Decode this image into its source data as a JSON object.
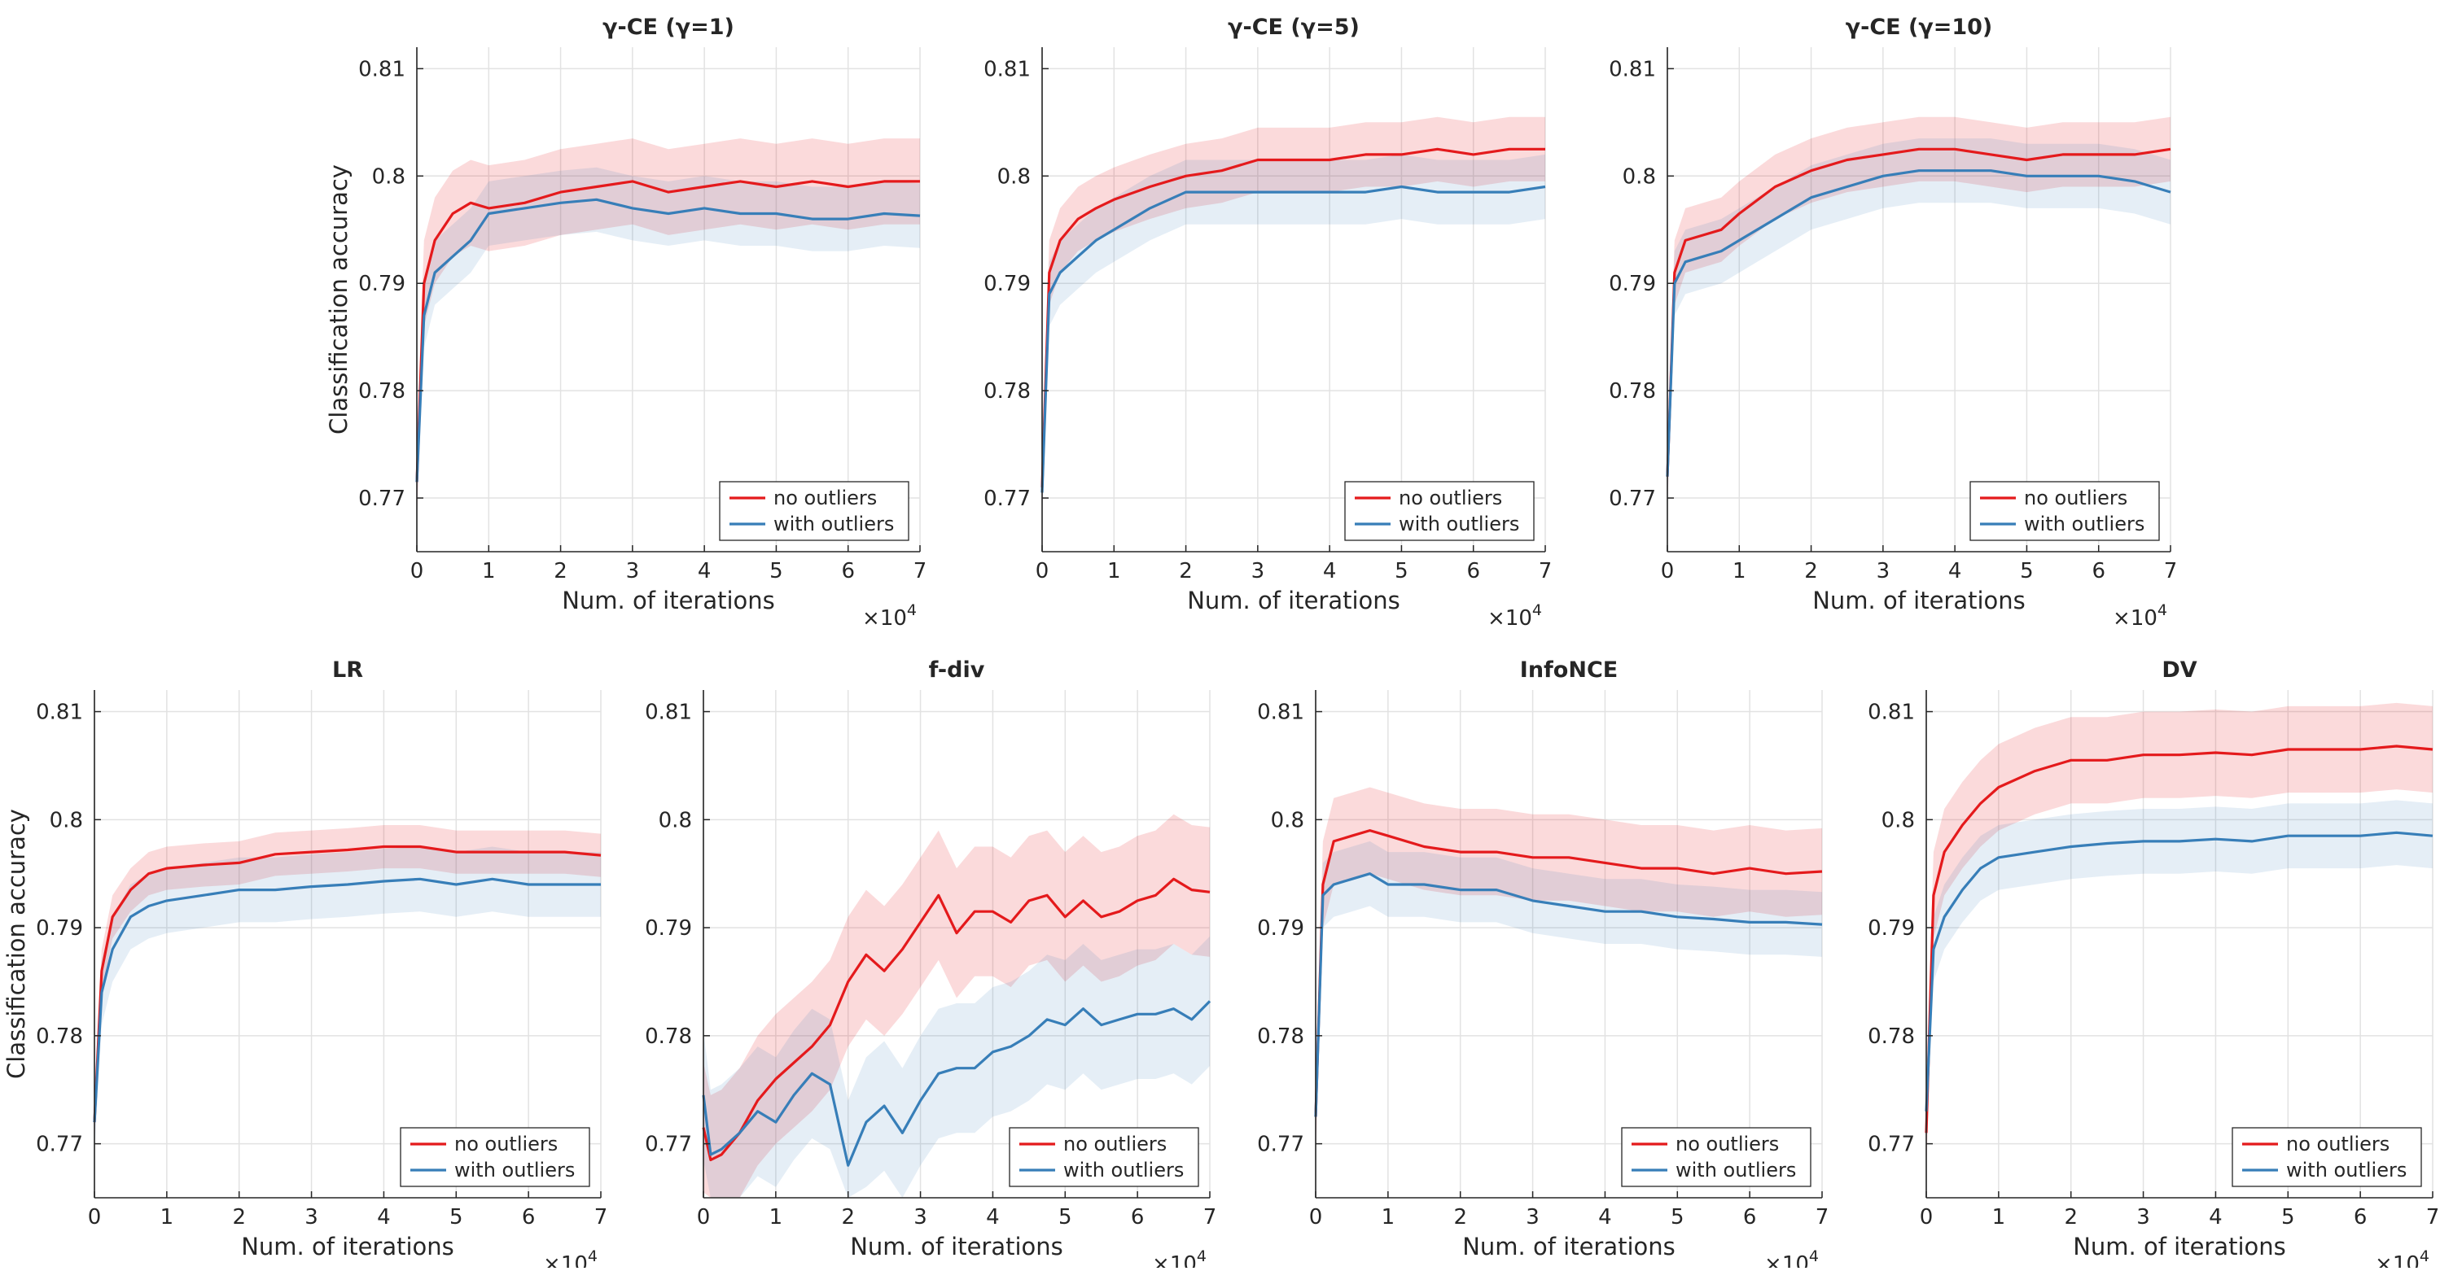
{
  "colors": {
    "no_outliers": "#e41a1c",
    "with_outliers": "#377eb8"
  },
  "chart_data": [
    {
      "type": "line",
      "title": "γ-CE (γ=1)",
      "xlabel": "Num. of iterations",
      "ylabel": "Classification accuracy",
      "x_multiplier": "×10^4",
      "xlim": [
        0,
        7
      ],
      "ylim": [
        0.765,
        0.812
      ],
      "xticks": [
        "0",
        "1",
        "2",
        "3",
        "4",
        "5",
        "6",
        "7"
      ],
      "yticks": [
        "0.77",
        "0.78",
        "0.79",
        "0.8",
        "0.81"
      ],
      "legend": [
        "no outliers",
        "with outliers"
      ],
      "legend_location": "bottom-right",
      "grid": true,
      "series": [
        {
          "name": "no outliers",
          "x": [
            0,
            0.1,
            0.25,
            0.5,
            0.75,
            1,
            1.5,
            2,
            2.5,
            3,
            3.5,
            4,
            4.5,
            5,
            5.5,
            6,
            6.5,
            7
          ],
          "y": [
            0.7715,
            0.79,
            0.794,
            0.7965,
            0.7975,
            0.797,
            0.7975,
            0.7985,
            0.799,
            0.7995,
            0.7985,
            0.799,
            0.7995,
            0.799,
            0.7995,
            0.799,
            0.7995,
            0.7995
          ],
          "band": 0.004
        },
        {
          "name": "with outliers",
          "x": [
            0,
            0.1,
            0.25,
            0.5,
            0.75,
            1,
            1.5,
            2,
            2.5,
            3,
            3.5,
            4,
            4.5,
            5,
            5.5,
            6,
            6.5,
            7
          ],
          "y": [
            0.7715,
            0.787,
            0.791,
            0.7925,
            0.794,
            0.7965,
            0.797,
            0.7975,
            0.7978,
            0.797,
            0.7965,
            0.797,
            0.7965,
            0.7965,
            0.796,
            0.796,
            0.7965,
            0.7963
          ],
          "band": 0.003
        }
      ]
    },
    {
      "type": "line",
      "title": "γ-CE (γ=5)",
      "xlabel": "Num. of iterations",
      "ylabel": "",
      "x_multiplier": "×10^4",
      "xlim": [
        0,
        7
      ],
      "ylim": [
        0.765,
        0.812
      ],
      "xticks": [
        "0",
        "1",
        "2",
        "3",
        "4",
        "5",
        "6",
        "7"
      ],
      "yticks": [
        "0.77",
        "0.78",
        "0.79",
        "0.8",
        "0.81"
      ],
      "legend": [
        "no outliers",
        "with outliers"
      ],
      "legend_location": "bottom-right",
      "grid": true,
      "series": [
        {
          "name": "no outliers",
          "x": [
            0,
            0.1,
            0.25,
            0.5,
            0.75,
            1,
            1.5,
            2,
            2.5,
            3,
            3.5,
            4,
            4.5,
            5,
            5.5,
            6,
            6.5,
            7
          ],
          "y": [
            0.771,
            0.791,
            0.794,
            0.796,
            0.797,
            0.7978,
            0.799,
            0.8,
            0.8005,
            0.8015,
            0.8015,
            0.8015,
            0.802,
            0.802,
            0.8025,
            0.802,
            0.8025,
            0.8025
          ],
          "band": 0.003
        },
        {
          "name": "with outliers",
          "x": [
            0,
            0.1,
            0.25,
            0.5,
            0.75,
            1,
            1.5,
            2,
            2.5,
            3,
            3.5,
            4,
            4.5,
            5,
            5.5,
            6,
            6.5,
            7
          ],
          "y": [
            0.7705,
            0.789,
            0.791,
            0.7925,
            0.794,
            0.795,
            0.797,
            0.7985,
            0.7985,
            0.7985,
            0.7985,
            0.7985,
            0.7985,
            0.799,
            0.7985,
            0.7985,
            0.7985,
            0.799
          ],
          "band": 0.003
        }
      ]
    },
    {
      "type": "line",
      "title": "γ-CE (γ=10)",
      "xlabel": "Num. of iterations",
      "ylabel": "",
      "x_multiplier": "×10^4",
      "xlim": [
        0,
        7
      ],
      "ylim": [
        0.765,
        0.812
      ],
      "xticks": [
        "0",
        "1",
        "2",
        "3",
        "4",
        "5",
        "6",
        "7"
      ],
      "yticks": [
        "0.77",
        "0.78",
        "0.79",
        "0.8",
        "0.81"
      ],
      "legend": [
        "no outliers",
        "with outliers"
      ],
      "legend_location": "bottom-right",
      "grid": true,
      "series": [
        {
          "name": "no outliers",
          "x": [
            0,
            0.1,
            0.25,
            0.5,
            0.75,
            1,
            1.5,
            2,
            2.5,
            3,
            3.5,
            4,
            4.5,
            5,
            5.5,
            6,
            6.5,
            7
          ],
          "y": [
            0.772,
            0.791,
            0.794,
            0.7945,
            0.795,
            0.7965,
            0.799,
            0.8005,
            0.8015,
            0.802,
            0.8025,
            0.8025,
            0.802,
            0.8015,
            0.802,
            0.802,
            0.802,
            0.8025
          ],
          "band": 0.003
        },
        {
          "name": "with outliers",
          "x": [
            0,
            0.1,
            0.25,
            0.5,
            0.75,
            1,
            1.5,
            2,
            2.5,
            3,
            3.5,
            4,
            4.5,
            5,
            5.5,
            6,
            6.5,
            7
          ],
          "y": [
            0.772,
            0.79,
            0.792,
            0.7925,
            0.793,
            0.794,
            0.796,
            0.798,
            0.799,
            0.8,
            0.8005,
            0.8005,
            0.8005,
            0.8,
            0.8,
            0.8,
            0.7995,
            0.7985
          ],
          "band": 0.003
        }
      ]
    },
    {
      "type": "line",
      "title": "LR",
      "xlabel": "Num. of iterations",
      "ylabel": "Classification accuracy",
      "x_multiplier": "×10^4",
      "xlim": [
        0,
        7
      ],
      "ylim": [
        0.765,
        0.812
      ],
      "xticks": [
        "0",
        "1",
        "2",
        "3",
        "4",
        "5",
        "6",
        "7"
      ],
      "yticks": [
        "0.77",
        "0.78",
        "0.79",
        "0.8",
        "0.81"
      ],
      "legend": [
        "no outliers",
        "with outliers"
      ],
      "legend_location": "bottom-right",
      "grid": true,
      "series": [
        {
          "name": "no outliers",
          "x": [
            0,
            0.1,
            0.25,
            0.5,
            0.75,
            1,
            1.5,
            2,
            2.5,
            3,
            3.5,
            4,
            4.5,
            5,
            5.5,
            6,
            6.5,
            7
          ],
          "y": [
            0.772,
            0.786,
            0.791,
            0.7935,
            0.795,
            0.7955,
            0.7958,
            0.796,
            0.7968,
            0.797,
            0.7972,
            0.7975,
            0.7975,
            0.797,
            0.797,
            0.797,
            0.797,
            0.7967
          ],
          "band": 0.002
        },
        {
          "name": "with outliers",
          "x": [
            0,
            0.1,
            0.25,
            0.5,
            0.75,
            1,
            1.5,
            2,
            2.5,
            3,
            3.5,
            4,
            4.5,
            5,
            5.5,
            6,
            6.5,
            7
          ],
          "y": [
            0.772,
            0.784,
            0.788,
            0.791,
            0.792,
            0.7925,
            0.793,
            0.7935,
            0.7935,
            0.7938,
            0.794,
            0.7943,
            0.7945,
            0.794,
            0.7945,
            0.794,
            0.794,
            0.794
          ],
          "band": 0.003
        }
      ]
    },
    {
      "type": "line",
      "title": "f-div",
      "xlabel": "Num. of iterations",
      "ylabel": "",
      "x_multiplier": "×10^4",
      "xlim": [
        0,
        7
      ],
      "ylim": [
        0.765,
        0.812
      ],
      "xticks": [
        "0",
        "1",
        "2",
        "3",
        "4",
        "5",
        "6",
        "7"
      ],
      "yticks": [
        "0.77",
        "0.78",
        "0.79",
        "0.8",
        "0.81"
      ],
      "legend": [
        "no outliers",
        "with outliers"
      ],
      "legend_location": "bottom-right",
      "grid": true,
      "series": [
        {
          "name": "no outliers",
          "x": [
            0,
            0.1,
            0.25,
            0.5,
            0.75,
            1,
            1.25,
            1.5,
            1.75,
            2,
            2.25,
            2.5,
            2.75,
            3,
            3.25,
            3.5,
            3.75,
            4,
            4.25,
            4.5,
            4.75,
            5,
            5.25,
            5.5,
            5.75,
            6,
            6.25,
            6.5,
            6.75,
            7
          ],
          "y": [
            0.7715,
            0.7685,
            0.769,
            0.771,
            0.774,
            0.776,
            0.7775,
            0.779,
            0.781,
            0.785,
            0.7875,
            0.786,
            0.788,
            0.7905,
            0.793,
            0.7895,
            0.7915,
            0.7915,
            0.7905,
            0.7925,
            0.793,
            0.791,
            0.7925,
            0.791,
            0.7915,
            0.7925,
            0.793,
            0.7945,
            0.7935,
            0.7933
          ],
          "band": 0.006
        },
        {
          "name": "with outliers",
          "x": [
            0,
            0.1,
            0.25,
            0.5,
            0.75,
            1,
            1.25,
            1.5,
            1.75,
            2,
            2.25,
            2.5,
            2.75,
            3,
            3.25,
            3.5,
            3.75,
            4,
            4.25,
            4.5,
            4.75,
            5,
            5.25,
            5.5,
            5.75,
            6,
            6.25,
            6.5,
            6.75,
            7
          ],
          "y": [
            0.7745,
            0.769,
            0.7695,
            0.771,
            0.773,
            0.772,
            0.7745,
            0.7765,
            0.7755,
            0.768,
            0.772,
            0.7735,
            0.771,
            0.774,
            0.7765,
            0.777,
            0.777,
            0.7785,
            0.779,
            0.78,
            0.7815,
            0.781,
            0.7825,
            0.781,
            0.7815,
            0.782,
            0.782,
            0.7825,
            0.7815,
            0.7832
          ],
          "band": 0.006
        }
      ]
    },
    {
      "type": "line",
      "title": "InfoNCE",
      "xlabel": "Num. of iterations",
      "ylabel": "",
      "x_multiplier": "×10^4",
      "xlim": [
        0,
        7
      ],
      "ylim": [
        0.765,
        0.812
      ],
      "xticks": [
        "0",
        "1",
        "2",
        "3",
        "4",
        "5",
        "6",
        "7"
      ],
      "yticks": [
        "0.77",
        "0.78",
        "0.79",
        "0.8",
        "0.81"
      ],
      "legend": [
        "no outliers",
        "with outliers"
      ],
      "legend_location": "bottom-right",
      "grid": true,
      "series": [
        {
          "name": "no outliers",
          "x": [
            0,
            0.1,
            0.25,
            0.5,
            0.75,
            1,
            1.5,
            2,
            2.5,
            3,
            3.5,
            4,
            4.5,
            5,
            5.5,
            6,
            6.5,
            7
          ],
          "y": [
            0.7725,
            0.794,
            0.798,
            0.7985,
            0.799,
            0.7985,
            0.7975,
            0.797,
            0.797,
            0.7965,
            0.7965,
            0.796,
            0.7955,
            0.7955,
            0.795,
            0.7955,
            0.795,
            0.7952
          ],
          "band": 0.004
        },
        {
          "name": "with outliers",
          "x": [
            0,
            0.1,
            0.25,
            0.5,
            0.75,
            1,
            1.5,
            2,
            2.5,
            3,
            3.5,
            4,
            4.5,
            5,
            5.5,
            6,
            6.5,
            7
          ],
          "y": [
            0.7725,
            0.793,
            0.794,
            0.7945,
            0.795,
            0.794,
            0.794,
            0.7935,
            0.7935,
            0.7925,
            0.792,
            0.7915,
            0.7915,
            0.791,
            0.7908,
            0.7905,
            0.7905,
            0.7903
          ],
          "band": 0.003
        }
      ]
    },
    {
      "type": "line",
      "title": "DV",
      "xlabel": "Num. of iterations",
      "ylabel": "",
      "x_multiplier": "×10^4",
      "xlim": [
        0,
        7
      ],
      "ylim": [
        0.765,
        0.812
      ],
      "xticks": [
        "0",
        "1",
        "2",
        "3",
        "4",
        "5",
        "6",
        "7"
      ],
      "yticks": [
        "0.77",
        "0.78",
        "0.79",
        "0.8",
        "0.81"
      ],
      "legend": [
        "no outliers",
        "with outliers"
      ],
      "legend_location": "bottom-right",
      "grid": true,
      "series": [
        {
          "name": "no outliers",
          "x": [
            0,
            0.1,
            0.25,
            0.5,
            0.75,
            1,
            1.5,
            2,
            2.5,
            3,
            3.5,
            4,
            4.5,
            5,
            5.5,
            6,
            6.5,
            7
          ],
          "y": [
            0.771,
            0.793,
            0.797,
            0.7995,
            0.8015,
            0.803,
            0.8045,
            0.8055,
            0.8055,
            0.806,
            0.806,
            0.8062,
            0.806,
            0.8065,
            0.8065,
            0.8065,
            0.8068,
            0.8065
          ],
          "band": 0.004
        },
        {
          "name": "with outliers",
          "x": [
            0,
            0.1,
            0.25,
            0.5,
            0.75,
            1,
            1.5,
            2,
            2.5,
            3,
            3.5,
            4,
            4.5,
            5,
            5.5,
            6,
            6.5,
            7
          ],
          "y": [
            0.773,
            0.788,
            0.791,
            0.7935,
            0.7955,
            0.7965,
            0.797,
            0.7975,
            0.7978,
            0.798,
            0.798,
            0.7982,
            0.798,
            0.7985,
            0.7985,
            0.7985,
            0.7988,
            0.7985
          ],
          "band": 0.003
        }
      ]
    }
  ]
}
